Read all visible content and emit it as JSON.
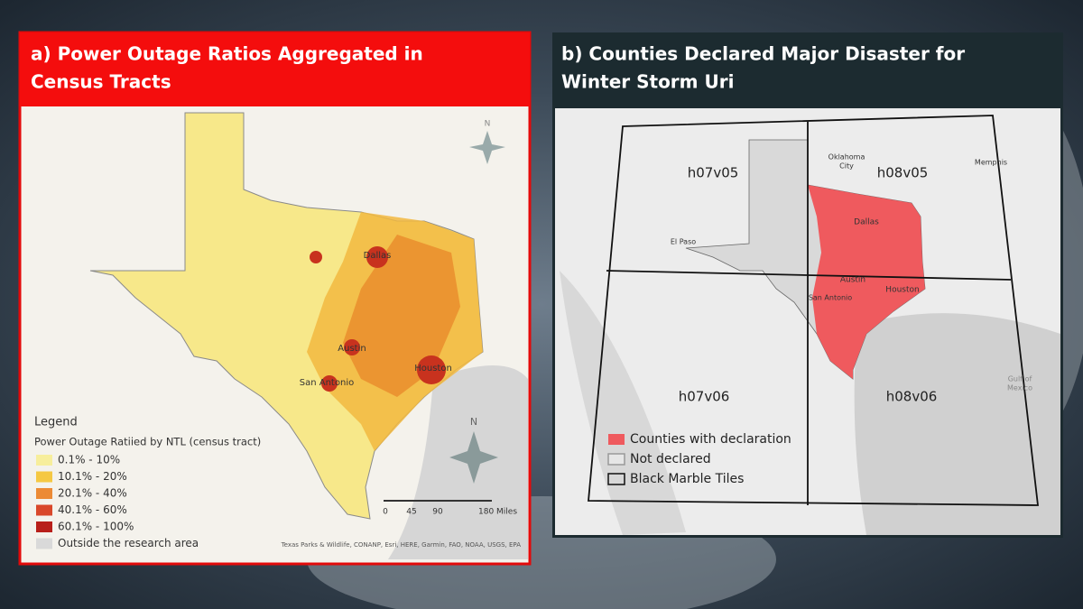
{
  "panel_a": {
    "title_lines": [
      "a) Power Outage Ratios Aggregated in",
      "Census Tracts"
    ],
    "cities": [
      "Dallas",
      "Austin",
      "San Antonio",
      "Houston"
    ],
    "compass": "N",
    "legend": {
      "title": "Legend",
      "subtitle": "Power Outage Ratiied by NTL (census tract)",
      "items": [
        "0.1% - 10%",
        "10.1% - 20%",
        "20.1% - 40%",
        "40.1% - 60%",
        "60.1% - 100%",
        "Outside the research area"
      ]
    },
    "scale": [
      "0",
      "45",
      "90",
      "180 Miles"
    ],
    "credits": "Texas Parks & Wildlife, CONANP, Esri, HERE, Garmin, FAO, NOAA, USGS, EPA"
  },
  "panel_b": {
    "title_lines": [
      "b) Counties Declared Major Disaster for",
      "Winter Storm Uri"
    ],
    "tiles": [
      "h07v05",
      "h08v05",
      "h07v06",
      "h08v06"
    ],
    "cities": [
      "Oklahoma",
      "City",
      "Memphis",
      "Dallas",
      "El Paso",
      "Austin",
      "San Antonio",
      "Houston"
    ],
    "gulf": [
      "Gulf of",
      "Mexico"
    ],
    "legend": [
      "Counties with declaration",
      "Not declared",
      "Black Marble Tiles"
    ]
  }
}
